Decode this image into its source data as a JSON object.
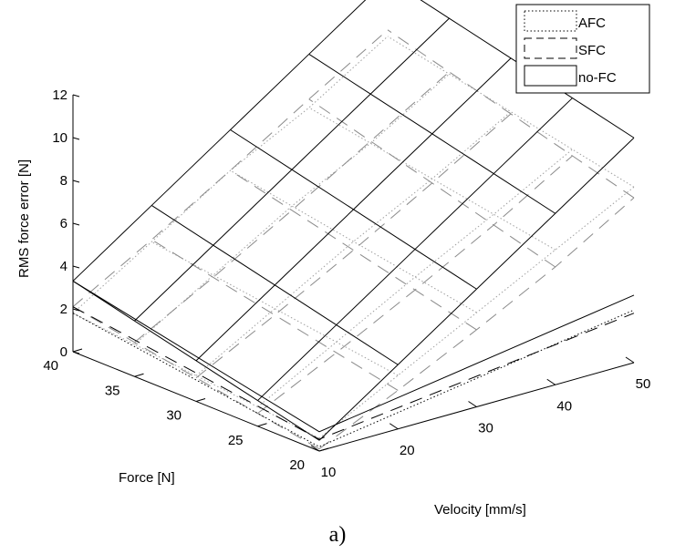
{
  "chart_data": {
    "type": "surface3d",
    "caption": "a)",
    "zlabel": "RMS force error [N]",
    "xlabel": "Velocity [mm/s]",
    "ylabel": "Force [N]",
    "z_ticks": [
      "0",
      "2",
      "4",
      "6",
      "8",
      "10",
      "12"
    ],
    "x_ticks": [
      "10",
      "20",
      "30",
      "40",
      "50"
    ],
    "y_ticks": [
      "20",
      "25",
      "30",
      "35",
      "40"
    ],
    "zlim": [
      0,
      12
    ],
    "xlim": [
      10,
      50
    ],
    "ylim": [
      20,
      40
    ],
    "velocity": [
      10,
      20,
      30,
      40,
      50
    ],
    "force": [
      20,
      25,
      30,
      35,
      40
    ],
    "legend": {
      "position": "top-right",
      "entries": [
        "AFC",
        "SFC",
        "no-FC"
      ]
    },
    "series": [
      {
        "name": "no-FC",
        "style": "solid",
        "z": [
          [
            0.5,
            3.0,
            5.5,
            8.0,
            10.5
          ],
          [
            1.2,
            3.7,
            6.2,
            8.7,
            11.2
          ],
          [
            1.9,
            4.4,
            6.9,
            9.4,
            11.9
          ],
          [
            2.6,
            5.1,
            7.6,
            10.1,
            12.6
          ],
          [
            3.3,
            5.8,
            8.3,
            10.8,
            13.3
          ]
        ]
      },
      {
        "name": "SFC",
        "style": "dashed",
        "z": [
          [
            0.1,
            1.8,
            3.6,
            5.5,
            7.7
          ],
          [
            0.6,
            2.4,
            4.3,
            6.3,
            8.5
          ],
          [
            1.1,
            3.0,
            5.0,
            7.1,
            9.3
          ],
          [
            1.6,
            3.6,
            5.7,
            7.9,
            10.1
          ],
          [
            2.1,
            4.2,
            6.4,
            8.7,
            10.9
          ]
        ]
      },
      {
        "name": "AFC",
        "style": "dotted",
        "z": [
          [
            0.6,
            2.5,
            4.4,
            6.3,
            8.2
          ],
          [
            0.9,
            2.9,
            4.9,
            6.8,
            8.8
          ],
          [
            1.2,
            3.3,
            5.4,
            7.3,
            9.4
          ],
          [
            1.5,
            3.7,
            5.9,
            7.8,
            10.0
          ],
          [
            1.8,
            4.1,
            6.4,
            8.3,
            10.6
          ]
        ]
      }
    ],
    "colors": {
      "no-FC": "#000000",
      "SFC": "#8a8a8a",
      "AFC": "#a0a0a0",
      "legend_SFC": "#000000",
      "legend_AFC": "#000000"
    }
  }
}
